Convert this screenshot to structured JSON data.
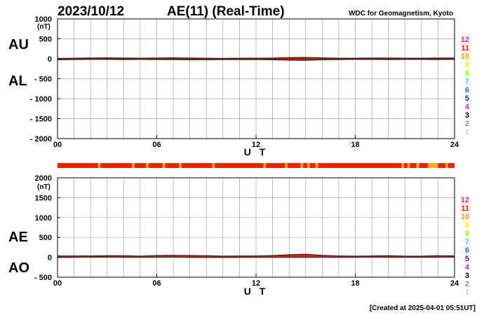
{
  "header": {
    "date": "2023/10/12",
    "title": "AE(11) (Real-Time)",
    "org": "WDC for Geomagnetism, Kyoto"
  },
  "footer": {
    "created": "[Created at 2025-04-01 05:51UT]"
  },
  "station_legend": [
    {
      "label": "12",
      "color": "#e8197f"
    },
    {
      "label": "11",
      "color": "#ff1a00"
    },
    {
      "label": "10",
      "color": "#ff9900"
    },
    {
      "label": "9",
      "color": "#ffee00"
    },
    {
      "label": "8",
      "color": "#99ee22"
    },
    {
      "label": "7",
      "color": "#22dddd"
    },
    {
      "label": "6",
      "color": "#1a66ff"
    },
    {
      "label": "5",
      "color": "#2222bb"
    },
    {
      "label": "4",
      "color": "#cc22cc"
    },
    {
      "label": "3",
      "color": "#000000"
    },
    {
      "label": "2",
      "color": "#888888"
    },
    {
      "label": "1",
      "color": "#cccccc"
    }
  ],
  "colors": {
    "fill": "#dd2200",
    "line": "#111111",
    "grid": "#a0a0a0",
    "strip_red": "#ee2200",
    "strip_orange": "#ffaa22"
  },
  "chart_data": [
    {
      "type": "area",
      "panel": "AU/AL",
      "ylabels": [
        "AU",
        "AL"
      ],
      "unit": "(nT)",
      "xlabel": "U T",
      "xlim": [
        0,
        24
      ],
      "xticks": [
        0,
        6,
        12,
        18,
        24
      ],
      "xtick_labels": [
        "00",
        "06",
        "12",
        "18",
        "24"
      ],
      "ylim": [
        -2000,
        1000
      ],
      "yticks": [
        1000,
        500,
        0,
        -500,
        -1000,
        -1500,
        -2000
      ],
      "ytick_labels": [
        "1000",
        "500",
        "0",
        "- 500",
        "- 1000",
        "- 1500",
        "- 2000"
      ],
      "grid": true,
      "x": [
        0,
        1,
        2,
        3,
        4,
        5,
        6,
        7,
        8,
        9,
        10,
        11,
        12,
        13,
        14,
        15,
        16,
        17,
        18,
        19,
        20,
        21,
        22,
        23,
        24
      ],
      "series": [
        {
          "name": "AU",
          "values": [
            10,
            15,
            20,
            25,
            20,
            15,
            20,
            25,
            20,
            15,
            10,
            15,
            15,
            20,
            30,
            35,
            25,
            15,
            15,
            20,
            20,
            15,
            15,
            20,
            20
          ]
        },
        {
          "name": "AL",
          "values": [
            -25,
            -20,
            -15,
            -15,
            -20,
            -15,
            -20,
            -20,
            -25,
            -25,
            -20,
            -20,
            -20,
            -25,
            -35,
            -40,
            -25,
            -20,
            -15,
            -15,
            -20,
            -15,
            -15,
            -20,
            -15
          ]
        }
      ]
    },
    {
      "type": "area",
      "panel": "AE/AO",
      "ylabels": [
        "AE",
        "AO"
      ],
      "unit": "(nT)",
      "xlabel": "U T",
      "xlim": [
        0,
        24
      ],
      "xticks": [
        0,
        6,
        12,
        18,
        24
      ],
      "xtick_labels": [
        "00",
        "06",
        "12",
        "18",
        "24"
      ],
      "ylim": [
        -500,
        2000
      ],
      "yticks": [
        2000,
        1500,
        1000,
        500,
        0,
        -500
      ],
      "ytick_labels": [
        "2000",
        "1500",
        "1000",
        "500",
        "0",
        "- 500"
      ],
      "grid": true,
      "x": [
        0,
        1,
        2,
        3,
        4,
        5,
        6,
        7,
        8,
        9,
        10,
        11,
        12,
        13,
        14,
        15,
        16,
        17,
        18,
        19,
        20,
        21,
        22,
        23,
        24
      ],
      "series": [
        {
          "name": "AE",
          "values": [
            35,
            35,
            35,
            40,
            40,
            30,
            45,
            50,
            45,
            40,
            30,
            35,
            35,
            45,
            65,
            75,
            50,
            35,
            30,
            35,
            40,
            30,
            30,
            40,
            35
          ]
        },
        {
          "name": "AO",
          "values": [
            -5,
            -3,
            3,
            5,
            0,
            0,
            0,
            3,
            -3,
            -5,
            -5,
            -3,
            -3,
            -3,
            -3,
            -3,
            0,
            -3,
            0,
            3,
            0,
            0,
            0,
            0,
            3
          ]
        }
      ]
    }
  ],
  "station_strip": {
    "xlim": [
      0,
      24
    ],
    "orange_segments": [
      [
        2.45,
        2.6
      ],
      [
        4.5,
        4.65
      ],
      [
        5.35,
        5.5
      ],
      [
        6.35,
        6.5
      ],
      [
        7.35,
        7.5
      ],
      [
        9.35,
        9.5
      ],
      [
        12.45,
        12.6
      ],
      [
        13.75,
        13.9
      ],
      [
        14.7,
        14.85
      ],
      [
        15.1,
        15.25
      ],
      [
        15.6,
        15.75
      ],
      [
        20.8,
        20.95
      ],
      [
        21.15,
        21.3
      ],
      [
        21.7,
        21.85
      ],
      [
        22.4,
        23.0
      ],
      [
        23.45,
        23.6
      ]
    ]
  }
}
